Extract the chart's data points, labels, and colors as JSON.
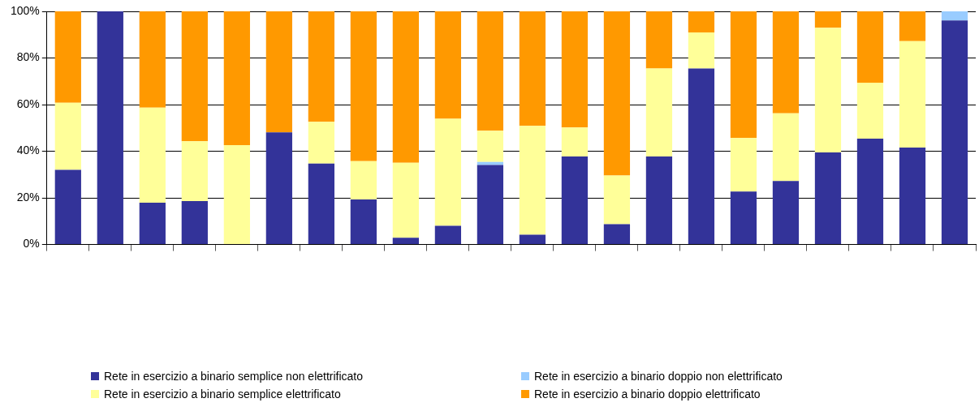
{
  "chart_data": {
    "type": "bar",
    "stacked": true,
    "grid": "y",
    "legend": "bottom",
    "categories": [
      null,
      null,
      null,
      null,
      null,
      null,
      null,
      null,
      null,
      null,
      null,
      null,
      null,
      null,
      null,
      null,
      null,
      null,
      null,
      null,
      null,
      null
    ],
    "ylim": [
      0,
      100
    ],
    "yticks": [
      {
        "value": 0,
        "label": "0%"
      },
      {
        "value": 20,
        "label": "20%"
      },
      {
        "value": 40,
        "label": "40%"
      },
      {
        "value": 60,
        "label": "60%"
      },
      {
        "value": 80,
        "label": "80%"
      },
      {
        "value": 100,
        "label": "100%"
      }
    ],
    "series": [
      {
        "name": "Rete in esercizio a binario semplice non elettrificato",
        "color": "#333399",
        "values": [
          32.0,
          100,
          17.9,
          18.6,
          0,
          48.1,
          34.7,
          19.3,
          2.9,
          8.0,
          34.1,
          4.2,
          37.8,
          8.7,
          37.8,
          75.5,
          22.7,
          27.2,
          39.5,
          45.4,
          41.6,
          96.1
        ]
      },
      {
        "name": "Rete in esercizio a binario doppio non elettrificato",
        "color": "#99ccff",
        "values": [
          0,
          0,
          0,
          0,
          0,
          0,
          0,
          0,
          0,
          0,
          1.3,
          0,
          0,
          0,
          0,
          0,
          0,
          0,
          0,
          0,
          0,
          3.9
        ]
      },
      {
        "name": "Rete in esercizio a binario semplice elettrificato",
        "color": "#ffff99",
        "values": [
          28.8,
          0,
          40.8,
          25.7,
          42.6,
          0,
          17.9,
          16.5,
          32.2,
          45.9,
          13.4,
          46.7,
          12.4,
          20.9,
          37.7,
          15.5,
          23.0,
          29.1,
          53.5,
          24.0,
          45.6,
          0
        ]
      },
      {
        "name": "Rete in esercizio a binario doppio elettrificato",
        "color": "#ff9900",
        "values": [
          39.2,
          0,
          41.3,
          55.7,
          57.4,
          51.9,
          47.4,
          64.2,
          64.9,
          46.1,
          51.2,
          49.1,
          49.8,
          70.4,
          24.5,
          9.0,
          54.3,
          43.7,
          7.0,
          30.6,
          12.8,
          0
        ]
      }
    ]
  }
}
